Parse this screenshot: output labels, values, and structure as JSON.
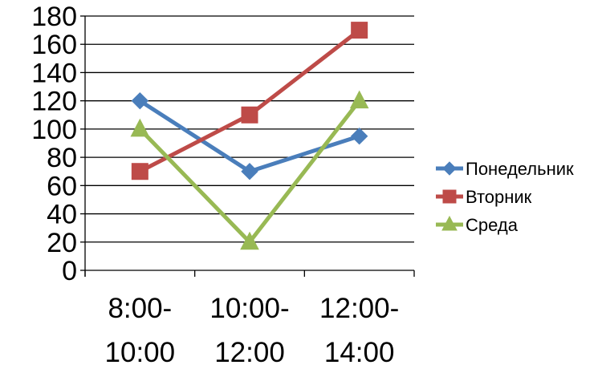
{
  "chart_data": {
    "type": "line",
    "categories": [
      [
        "8:00-",
        "10:00"
      ],
      [
        "10:00-",
        "12:00"
      ],
      [
        "12:00-",
        "14:00"
      ]
    ],
    "ylim": [
      0,
      180
    ],
    "yticks": [
      0,
      20,
      40,
      60,
      80,
      100,
      120,
      140,
      160,
      180
    ],
    "grid": true,
    "legend_position": "right",
    "series": [
      {
        "name": "Понедельник",
        "values": [
          120,
          70,
          95
        ],
        "color": "#4a7ebb",
        "marker": "diamond"
      },
      {
        "name": "Вторник",
        "values": [
          70,
          110,
          170
        ],
        "color": "#be4b48",
        "marker": "square"
      },
      {
        "name": "Среда",
        "values": [
          100,
          20,
          120
        ],
        "color": "#98b954",
        "marker": "triangle"
      }
    ]
  }
}
